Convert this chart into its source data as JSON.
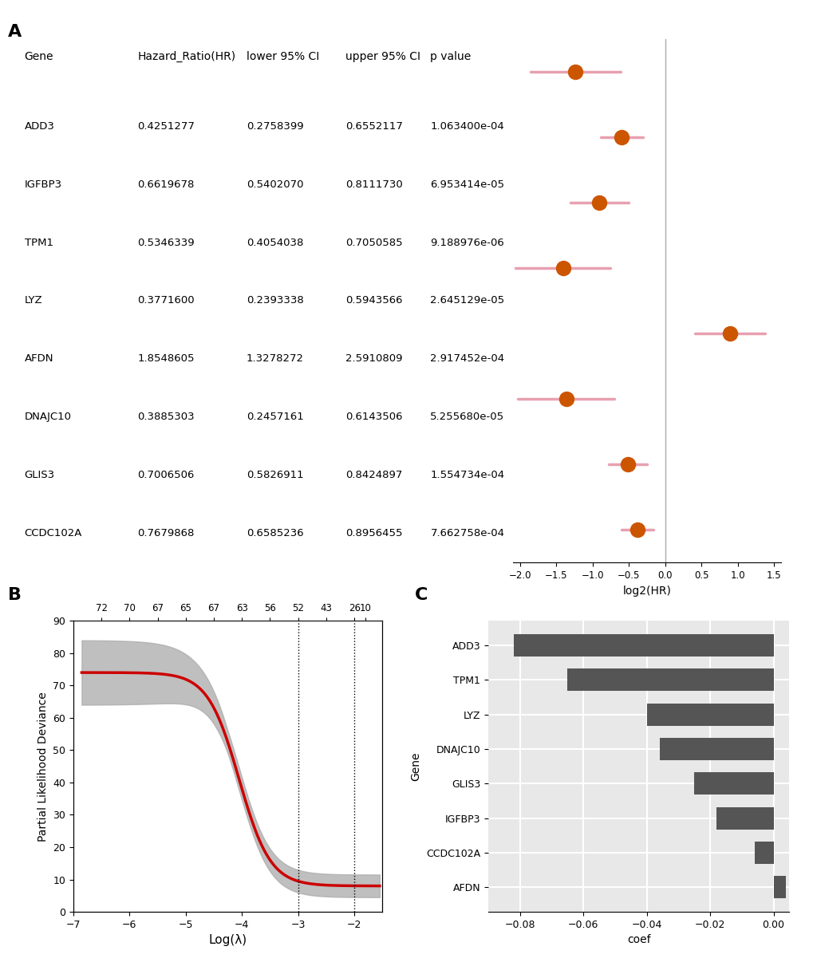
{
  "forest_genes": [
    "ADD3",
    "IGFBP3",
    "TPM1",
    "LYZ",
    "AFDN",
    "DNAJC10",
    "GLIS3",
    "CCDC102A"
  ],
  "forest_hr": [
    0.4251277,
    0.6619678,
    0.5346339,
    0.37716,
    1.8548605,
    0.3885303,
    0.7006506,
    0.7679868
  ],
  "forest_lower": [
    0.2758399,
    0.540207,
    0.4054038,
    0.2393338,
    1.3278272,
    0.2457161,
    0.5826911,
    0.6585236
  ],
  "forest_upper": [
    0.6552117,
    0.811173,
    0.7050585,
    0.5943566,
    2.5910809,
    0.6143506,
    0.8424897,
    0.8956455
  ],
  "forest_pval": [
    "1.063400e-04",
    "6.953414e-05",
    "9.188976e-06",
    "2.645129e-05",
    "2.917452e-04",
    "5.255680e-05",
    "1.554734e-04",
    "7.662758e-04"
  ],
  "forest_dot_color": "#CC5500",
  "forest_line_color": "#E8A0B0",
  "forest_vline_color": "#AAAAAA",
  "forest_xlim": [
    -2.1,
    1.6
  ],
  "forest_xticks": [
    -2.0,
    -1.5,
    -1.0,
    -0.5,
    0.0,
    0.5,
    1.0,
    1.5
  ],
  "forest_xlabel": "log2(HR)",
  "lasso_vline1": -3.0,
  "lasso_vline2": -2.0,
  "lasso_top_labels": [
    "72",
    "70",
    "67",
    "65",
    "67",
    "63",
    "56",
    "52",
    "43",
    "26",
    "10"
  ],
  "lasso_top_x": [
    -6.5,
    -6.0,
    -5.5,
    -5.0,
    -4.5,
    -4.0,
    -3.5,
    -3.0,
    -2.5,
    -2.0,
    -1.8
  ],
  "lasso_xlim": [
    -7.0,
    -1.5
  ],
  "lasso_xlabel": "Log(λ)",
  "lasso_ylabel": "Partial Likelihood Deviance",
  "lasso_line_color": "#CC0000",
  "lasso_ci_color": "#AAAAAA",
  "coef_genes": [
    "AFDN",
    "CCDC102A",
    "IGFBP3",
    "GLIS3",
    "DNAJC10",
    "LYZ",
    "TPM1",
    "ADD3"
  ],
  "coef_values": [
    0.0039,
    -0.006,
    -0.018,
    -0.025,
    -0.036,
    -0.04,
    -0.065,
    -0.082
  ],
  "coef_bar_color": "#555555",
  "coef_xlabel": "coef",
  "coef_ylabel": "Gene",
  "coef_bg_color": "#E8E8E8",
  "coef_grid_color": "#FFFFFF"
}
